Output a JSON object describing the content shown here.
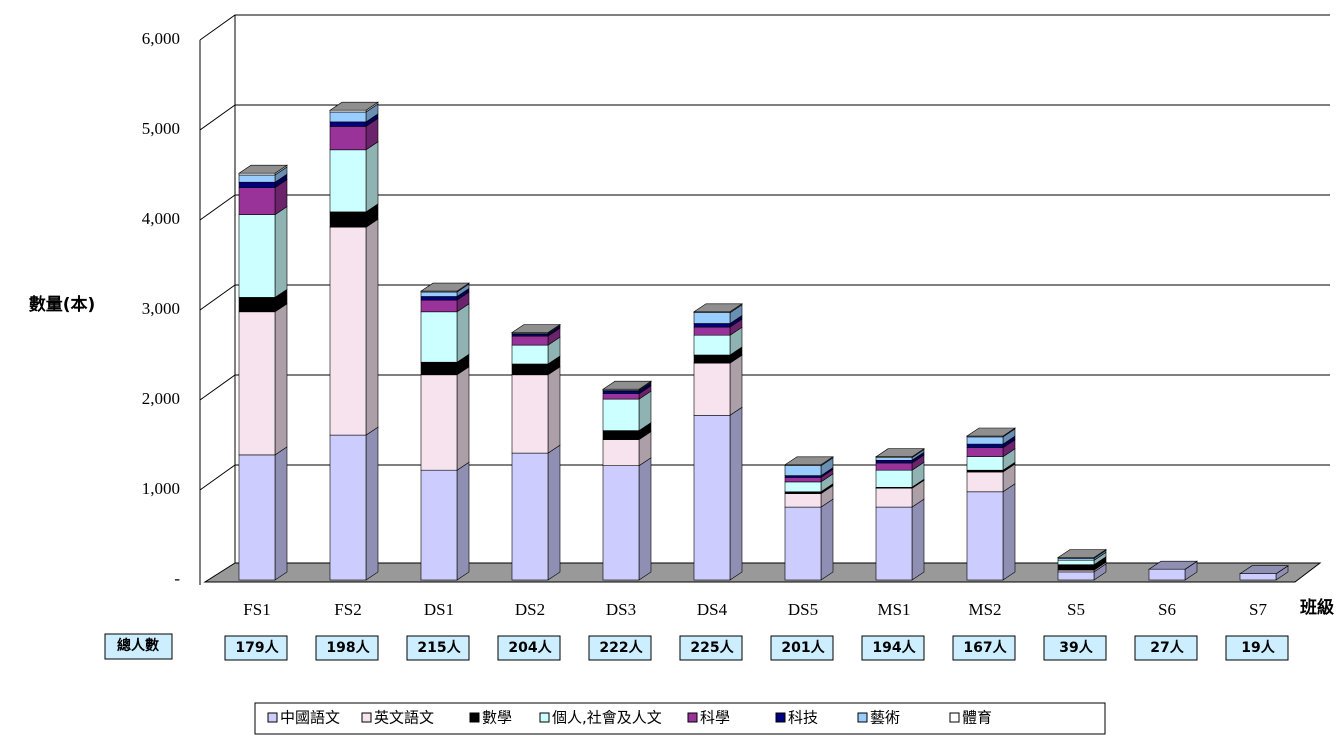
{
  "chart_data": {
    "type": "bar3d_stacked",
    "y_label": "數量(本)",
    "x_label": "班級",
    "categories": [
      "FS1",
      "FS2",
      "DS1",
      "DS2",
      "DS3",
      "DS4",
      "DS5",
      "MS1",
      "MS2",
      "S5",
      "S6",
      "S7"
    ],
    "ylim": [
      0,
      6000
    ],
    "yticks": [
      {
        "value": 0,
        "label": "-"
      },
      {
        "value": 1000,
        "label": "1,000"
      },
      {
        "value": 2000,
        "label": "2,000"
      },
      {
        "value": 3000,
        "label": "3,000"
      },
      {
        "value": 4000,
        "label": "4,000"
      },
      {
        "value": 5000,
        "label": "5,000"
      },
      {
        "value": 6000,
        "label": "6,000"
      }
    ],
    "grid": true,
    "legend": "bottom",
    "headcount": {
      "label": "總人數",
      "values": [
        "179人",
        "198人",
        "215人",
        "204人",
        "222人",
        "225人",
        "201人",
        "194人",
        "167人",
        "39人",
        "27人",
        "19人"
      ]
    },
    "series": [
      {
        "name": "中國語文",
        "color": "#ccccff",
        "values": [
          1390,
          1610,
          1220,
          1410,
          1270,
          1830,
          810,
          810,
          980,
          90,
          120,
          70
        ]
      },
      {
        "name": "英文語文",
        "color": "#f6e3ee",
        "values": [
          1590,
          2310,
          1060,
          870,
          290,
          580,
          150,
          210,
          220,
          20,
          0,
          0
        ]
      },
      {
        "name": "數學",
        "color": "#000000",
        "values": [
          160,
          170,
          140,
          120,
          100,
          90,
          20,
          10,
          20,
          60,
          0,
          0
        ]
      },
      {
        "name": "個人,社會及人文",
        "color": "#ccffff",
        "values": [
          920,
          690,
          560,
          210,
          350,
          220,
          110,
          190,
          150,
          50,
          0,
          0
        ]
      },
      {
        "name": "科學",
        "color": "#993399",
        "values": [
          300,
          260,
          130,
          100,
          60,
          90,
          50,
          80,
          100,
          0,
          0,
          0
        ]
      },
      {
        "name": "科技",
        "color": "#000080",
        "values": [
          60,
          50,
          40,
          20,
          30,
          40,
          20,
          30,
          40,
          0,
          0,
          0
        ]
      },
      {
        "name": "藝術",
        "color": "#99ccff",
        "values": [
          80,
          110,
          50,
          10,
          10,
          120,
          110,
          30,
          80,
          20,
          0,
          0
        ]
      },
      {
        "name": "體育",
        "color": "#ffffff",
        "values": [
          20,
          20,
          10,
          10,
          10,
          10,
          10,
          10,
          10,
          10,
          0,
          0
        ]
      }
    ]
  }
}
